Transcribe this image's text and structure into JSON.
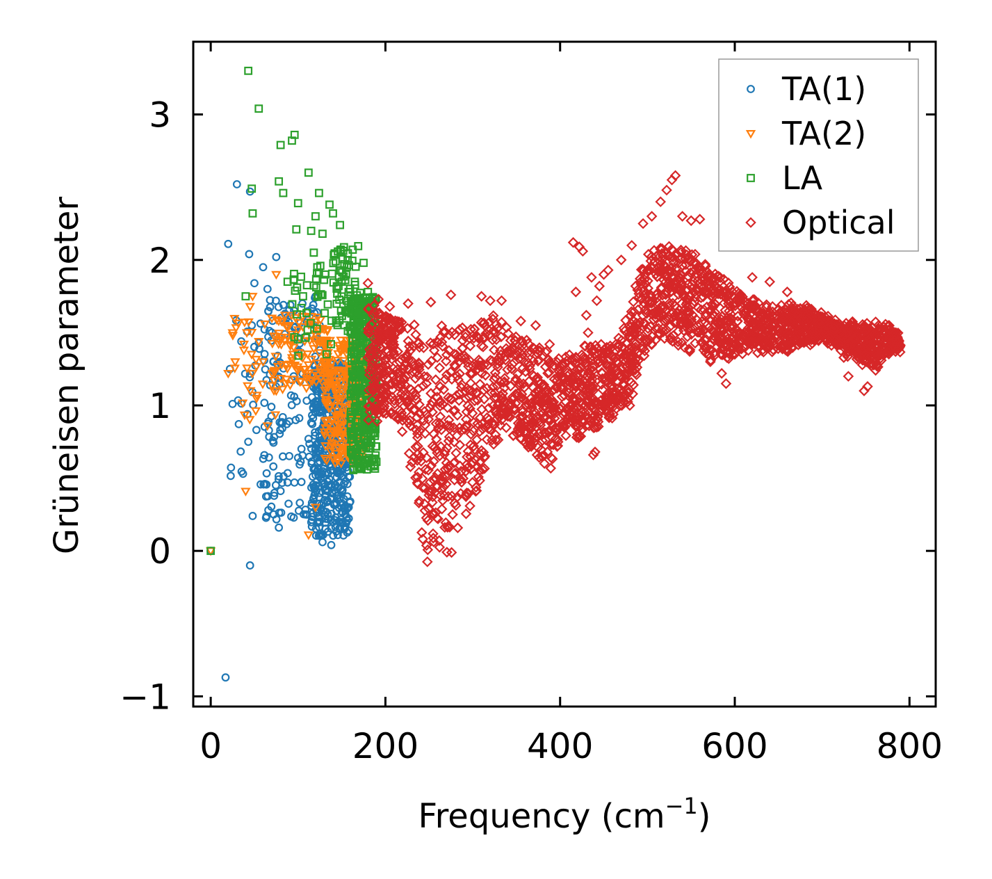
{
  "chart_data": {
    "type": "scatter",
    "title": "",
    "xlabel": "Frequency (cm",
    "xlabel_superscript": "−1",
    "xlabel_suffix": ")",
    "ylabel": "Grüneisen parameter",
    "xlim": [
      -20,
      830
    ],
    "ylim": [
      -1.07,
      3.5
    ],
    "xticks": [
      0,
      200,
      400,
      600,
      800
    ],
    "xtick_labels": [
      "0",
      "200",
      "400",
      "600",
      "800"
    ],
    "yticks": [
      -1,
      0,
      1,
      2,
      3
    ],
    "ytick_labels": [
      "−1",
      "0",
      "1",
      "2",
      "3"
    ],
    "grid": false,
    "legend_position": "top-right",
    "series": [
      {
        "name": "TA(1)",
        "marker": "circle",
        "color": "#1f77b4",
        "points": [
          [
            0,
            0
          ],
          [
            17,
            -0.87
          ],
          [
            20,
            2.11
          ],
          [
            22,
            1.25
          ],
          [
            25,
            1.01
          ],
          [
            30,
            2.52
          ],
          [
            35,
            1.44
          ],
          [
            42,
            0.94
          ],
          [
            43,
            0.75
          ],
          [
            44,
            2.04
          ],
          [
            45,
            2.47
          ],
          [
            45,
            -0.1
          ],
          [
            47,
            1.55
          ],
          [
            48,
            0.24
          ],
          [
            50,
            1.84
          ],
          [
            55,
            1.43
          ],
          [
            60,
            1.95
          ],
          [
            62,
            0.46
          ],
          [
            65,
            1.8
          ],
          [
            66,
            0.28
          ],
          [
            70,
            1.5
          ],
          [
            75,
            2.02
          ],
          [
            78,
            0.16
          ],
          [
            80,
            1.29
          ],
          [
            85,
            1.63
          ],
          [
            88,
            0.47
          ],
          [
            90,
            0.89
          ],
          [
            95,
            1.2
          ],
          [
            100,
            0.64
          ],
          [
            102,
            0.33
          ],
          [
            105,
            1.7
          ],
          [
            110,
            1.57
          ],
          [
            112,
            0.77
          ],
          [
            115,
            1.16
          ],
          [
            118,
            0.44
          ],
          [
            120,
            0.95
          ],
          [
            122,
            0.2
          ],
          [
            125,
            1.38
          ],
          [
            128,
            0.06
          ],
          [
            130,
            0.9
          ],
          [
            132,
            0.54
          ],
          [
            135,
            1.2
          ],
          [
            138,
            0.04
          ],
          [
            140,
            0.72
          ],
          [
            142,
            1.05
          ],
          [
            145,
            0.38
          ],
          [
            148,
            0.15
          ],
          [
            150,
            0.9
          ],
          [
            152,
            1.1
          ],
          [
            155,
            0.6
          ],
          [
            158,
            0.3
          ]
        ],
        "clusters": [
          {
            "x": [
              115,
              160
            ],
            "y": [
              0.1,
              1.3
            ],
            "n": 420
          },
          {
            "x": [
              60,
              125
            ],
            "y": [
              0.2,
              1.75
            ],
            "n": 150
          },
          {
            "x": [
              20,
              70
            ],
            "y": [
              0.4,
              1.6
            ],
            "n": 25
          }
        ]
      },
      {
        "name": "TA(2)",
        "marker": "triangle-down",
        "color": "#ff7f0e",
        "points": [
          [
            0,
            0
          ],
          [
            20,
            1.22
          ],
          [
            25,
            1.5
          ],
          [
            28,
            1.3
          ],
          [
            38,
            1.38
          ],
          [
            40,
            0.41
          ],
          [
            45,
            1.68
          ],
          [
            48,
            1.75
          ],
          [
            55,
            1.44
          ],
          [
            60,
            1.3
          ],
          [
            62,
            1.56
          ],
          [
            65,
            0.86
          ],
          [
            70,
            1.6
          ],
          [
            75,
            1.9
          ],
          [
            78,
            1.45
          ],
          [
            85,
            1.62
          ],
          [
            90,
            1.55
          ],
          [
            95,
            1.4
          ],
          [
            100,
            1.52
          ],
          [
            112,
            0.11
          ],
          [
            115,
            1.48
          ],
          [
            120,
            0.3
          ],
          [
            125,
            1.45
          ],
          [
            130,
            1.3
          ],
          [
            140,
            1.2
          ],
          [
            150,
            1.05
          ],
          [
            160,
            0.9
          ],
          [
            170,
            0.75
          ]
        ],
        "clusters": [
          {
            "x": [
              130,
              178
            ],
            "y": [
              0.6,
              1.45
            ],
            "n": 260
          },
          {
            "x": [
              70,
              135
            ],
            "y": [
              1.1,
              1.62
            ],
            "n": 120
          },
          {
            "x": [
              25,
              75
            ],
            "y": [
              0.9,
              1.6
            ],
            "n": 25
          }
        ]
      },
      {
        "name": "LA",
        "marker": "square",
        "color": "#2ca02c",
        "points": [
          [
            0,
            0
          ],
          [
            40,
            1.75
          ],
          [
            43,
            3.3
          ],
          [
            47,
            2.49
          ],
          [
            48,
            2.32
          ],
          [
            55,
            3.04
          ],
          [
            78,
            2.54
          ],
          [
            80,
            2.79
          ],
          [
            83,
            2.46
          ],
          [
            88,
            1.85
          ],
          [
            93,
            2.82
          ],
          [
            96,
            2.86
          ],
          [
            98,
            2.21
          ],
          [
            100,
            2.39
          ],
          [
            112,
            2.6
          ],
          [
            115,
            2.2
          ],
          [
            118,
            2.05
          ],
          [
            120,
            2.3
          ],
          [
            122,
            1.95
          ],
          [
            124,
            2.46
          ],
          [
            128,
            2.18
          ],
          [
            131,
            1.9
          ],
          [
            136,
            2.38
          ],
          [
            140,
            2.32
          ],
          [
            143,
            1.99
          ],
          [
            148,
            2.24
          ],
          [
            150,
            1.85
          ],
          [
            155,
            1.9
          ],
          [
            160,
            1.75
          ],
          [
            165,
            1.85
          ],
          [
            170,
            1.68
          ],
          [
            175,
            1.98
          ],
          [
            180,
            1.78
          ]
        ],
        "clusters": [
          {
            "x": [
              160,
              190
            ],
            "y": [
              0.55,
              1.75
            ],
            "n": 360
          },
          {
            "x": [
              140,
              175
            ],
            "y": [
              1.5,
              2.1
            ],
            "n": 70
          },
          {
            "x": [
              90,
              145
            ],
            "y": [
              1.3,
              2.0
            ],
            "n": 40
          }
        ]
      },
      {
        "name": "Optical",
        "marker": "diamond",
        "color": "#d62728",
        "envelope": [
          [
            180,
            0.75,
            1.78
          ],
          [
            200,
            0.9,
            1.7
          ],
          [
            220,
            0.75,
            1.65
          ],
          [
            235,
            0.3,
            1.65
          ],
          [
            240,
            -0.05,
            1.6
          ],
          [
            245,
            -0.15,
            1.55
          ],
          [
            248,
            -0.25,
            1.55
          ],
          [
            252,
            -0.2,
            1.6
          ],
          [
            258,
            0.05,
            1.65
          ],
          [
            262,
            -0.1,
            1.7
          ],
          [
            268,
            -0.18,
            1.72
          ],
          [
            275,
            -0.25,
            1.72
          ],
          [
            280,
            -0.1,
            1.7
          ],
          [
            290,
            0.15,
            1.65
          ],
          [
            300,
            0.2,
            1.7
          ],
          [
            320,
            0.6,
            1.7
          ],
          [
            340,
            0.75,
            1.6
          ],
          [
            360,
            0.62,
            1.5
          ],
          [
            380,
            0.55,
            1.45
          ],
          [
            390,
            0.52,
            1.4
          ],
          [
            400,
            0.72,
            1.4
          ],
          [
            420,
            0.72,
            1.45
          ],
          [
            440,
            0.78,
            1.5
          ],
          [
            460,
            0.85,
            1.45
          ],
          [
            470,
            0.95,
            1.55
          ],
          [
            480,
            0.95,
            1.7
          ],
          [
            490,
            1.2,
            1.95
          ],
          [
            500,
            1.35,
            2.1
          ],
          [
            520,
            1.38,
            2.15
          ],
          [
            540,
            1.35,
            2.15
          ],
          [
            560,
            1.3,
            2.1
          ],
          [
            580,
            1.25,
            2.0
          ],
          [
            600,
            1.3,
            1.85
          ],
          [
            620,
            1.35,
            1.75
          ],
          [
            640,
            1.35,
            1.72
          ],
          [
            660,
            1.35,
            1.72
          ],
          [
            680,
            1.4,
            1.7
          ],
          [
            700,
            1.45,
            1.62
          ],
          [
            712,
            1.4,
            1.6
          ],
          [
            720,
            1.35,
            1.58
          ],
          [
            740,
            1.3,
            1.58
          ],
          [
            760,
            1.2,
            1.6
          ],
          [
            775,
            1.35,
            1.58
          ],
          [
            790,
            1.38,
            1.48
          ]
        ],
        "n": 2600,
        "points": [
          [
            180,
            1.84
          ],
          [
            192,
            1.73
          ],
          [
            205,
            1.68
          ],
          [
            226,
            1.7
          ],
          [
            252,
            1.71
          ],
          [
            275,
            1.76
          ],
          [
            310,
            1.75
          ],
          [
            320,
            1.72
          ],
          [
            333,
            1.72
          ],
          [
            355,
            1.58
          ],
          [
            372,
            1.55
          ],
          [
            388,
            1.42
          ],
          [
            415,
            2.12
          ],
          [
            418,
            1.78
          ],
          [
            422,
            2.09
          ],
          [
            426,
            2.06
          ],
          [
            430,
            1.62
          ],
          [
            432,
            1.5
          ],
          [
            436,
            1.88
          ],
          [
            438,
            0.66
          ],
          [
            440,
            0.68
          ],
          [
            442,
            1.72
          ],
          [
            445,
            1.82
          ],
          [
            450,
            1.9
          ],
          [
            455,
            1.93
          ],
          [
            470,
            2.0
          ],
          [
            482,
            2.1
          ],
          [
            495,
            2.25
          ],
          [
            505,
            2.3
          ],
          [
            515,
            2.4
          ],
          [
            522,
            2.48
          ],
          [
            528,
            2.55
          ],
          [
            532,
            2.58
          ],
          [
            540,
            2.3
          ],
          [
            550,
            2.27
          ],
          [
            560,
            2.28
          ],
          [
            572,
            1.3
          ],
          [
            585,
            1.22
          ],
          [
            590,
            1.15
          ],
          [
            605,
            1.5
          ],
          [
            620,
            1.88
          ],
          [
            640,
            1.85
          ],
          [
            660,
            1.78
          ],
          [
            730,
            1.2
          ],
          [
            748,
            1.1
          ],
          [
            752,
            1.13
          ]
        ]
      }
    ],
    "legend": [
      "TA(1)",
      "TA(2)",
      "LA",
      "Optical"
    ]
  }
}
